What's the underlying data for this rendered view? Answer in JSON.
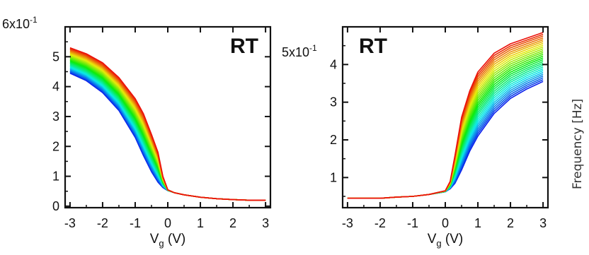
{
  "colorbar_label": "Frequency [Hz]",
  "chart_data": [
    {
      "type": "line",
      "panel_label": "RT",
      "xlabel_main": "V",
      "xlabel_sub": "g",
      "xlabel_unit": " (V)",
      "ylabel": "",
      "y_multiplier_mantissa": "6x10",
      "y_multiplier_exponent": "-1",
      "xlim": [
        -3.15,
        3.15
      ],
      "ylim": [
        -0.05,
        6.0
      ],
      "x_ticks": [
        -3,
        -2,
        -1,
        0,
        1,
        2,
        3
      ],
      "x_tick_labels": [
        "-3",
        "-2",
        "-1",
        "0",
        "1",
        "2",
        "3"
      ],
      "y_ticks": [
        0,
        1,
        2,
        3,
        4,
        5
      ],
      "y_tick_labels": [
        "0",
        "1",
        "2",
        "3",
        "4",
        "5"
      ],
      "grid": false,
      "color_order": "red to blue (rainbow), 28 curves",
      "series_first": {
        "color": "#e8201a",
        "x": [
          -3,
          -2.5,
          -2,
          -1.5,
          -1,
          -0.75,
          -0.5,
          -0.3,
          -0.15,
          0,
          0.2,
          0.5,
          1,
          1.5,
          2,
          2.5,
          3
        ],
        "y": [
          5.3,
          5.1,
          4.8,
          4.3,
          3.6,
          3.1,
          2.4,
          1.8,
          1.0,
          0.55,
          0.45,
          0.38,
          0.3,
          0.25,
          0.22,
          0.2,
          0.2
        ]
      },
      "series_last": {
        "color": "#2040e0",
        "x": [
          -3,
          -2.5,
          -2,
          -1.5,
          -1,
          -0.75,
          -0.5,
          -0.3,
          -0.15,
          0,
          0.2,
          0.5,
          1,
          1.5,
          2,
          2.5,
          3
        ],
        "y": [
          4.45,
          4.2,
          3.8,
          3.2,
          2.3,
          1.7,
          1.15,
          0.8,
          0.62,
          0.52,
          0.45,
          0.38,
          0.3,
          0.25,
          0.22,
          0.2,
          0.2
        ]
      }
    },
    {
      "type": "line",
      "panel_label": "RT",
      "xlabel_main": "V",
      "xlabel_sub": "g",
      "xlabel_unit": " (V)",
      "ylabel": "",
      "y_multiplier_mantissa": "5x10",
      "y_multiplier_exponent": "-1",
      "xlim": [
        -3.15,
        3.15
      ],
      "ylim": [
        0.2,
        5.0
      ],
      "x_ticks": [
        -3,
        -2,
        -1,
        0,
        1,
        2,
        3
      ],
      "x_tick_labels": [
        "-3",
        "-2",
        "-1",
        "0",
        "1",
        "2",
        "3"
      ],
      "y_ticks": [
        1,
        2,
        3,
        4
      ],
      "y_tick_labels": [
        "1",
        "2",
        "3",
        "4"
      ],
      "grid": false,
      "color_order": "red to blue (rainbow), 28 curves",
      "series_first": {
        "color": "#e8201a",
        "x": [
          -3,
          -2.5,
          -2,
          -1.5,
          -1,
          -0.5,
          0,
          0.15,
          0.3,
          0.5,
          0.75,
          1,
          1.5,
          2,
          2.5,
          3
        ],
        "y": [
          0.45,
          0.45,
          0.45,
          0.48,
          0.5,
          0.55,
          0.65,
          0.9,
          1.6,
          2.6,
          3.3,
          3.8,
          4.3,
          4.55,
          4.7,
          4.85
        ]
      },
      "series_last": {
        "color": "#2040e0",
        "x": [
          -3,
          -2.5,
          -2,
          -1.5,
          -1,
          -0.5,
          0,
          0.15,
          0.3,
          0.5,
          0.75,
          1,
          1.5,
          2,
          2.5,
          3
        ],
        "y": [
          0.45,
          0.45,
          0.45,
          0.48,
          0.5,
          0.55,
          0.62,
          0.7,
          0.85,
          1.2,
          1.7,
          2.1,
          2.7,
          3.1,
          3.35,
          3.55
        ]
      }
    }
  ]
}
